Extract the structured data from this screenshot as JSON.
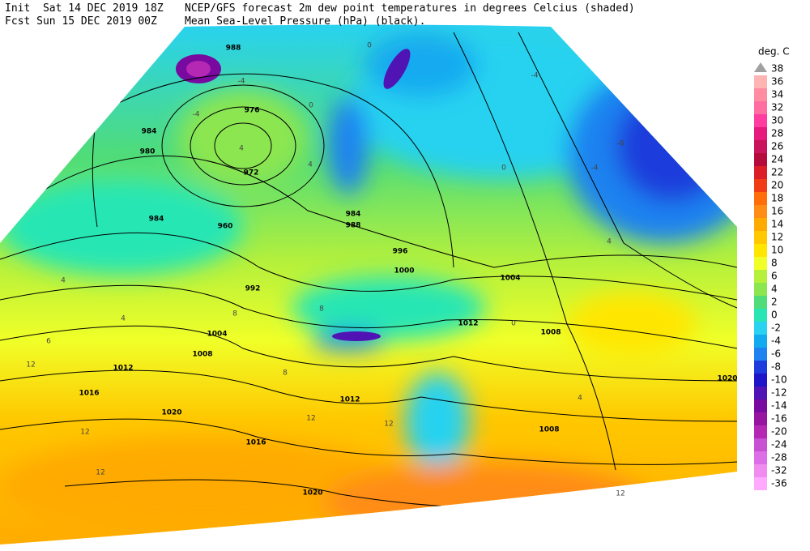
{
  "header": {
    "init": "Init  Sat 14 DEC 2019 18Z",
    "fcst": "Fcst Sun 15 DEC 2019 00Z",
    "title_1": "NCEP/GFS forecast 2m dew point temperatures in degrees Celcius (shaded)",
    "title_2": "Mean Sea-Level Pressure (hPa) (black)."
  },
  "legend": {
    "title": "deg. C",
    "levels": [
      38,
      36,
      34,
      32,
      30,
      28,
      26,
      24,
      22,
      20,
      18,
      16,
      14,
      12,
      10,
      8,
      6,
      4,
      2,
      0,
      -2,
      -4,
      -6,
      -8,
      -10,
      -12,
      -14,
      -16,
      -20,
      -24,
      -28,
      -32,
      -36
    ],
    "colors": [
      "#a0a0a0",
      "#ffb4b4",
      "#ff8ca0",
      "#ff6ea0",
      "#ff3ca0",
      "#e6197d",
      "#c8145a",
      "#b40a3c",
      "#dc1e28",
      "#f03c14",
      "#ff6e0a",
      "#ff8c14",
      "#ffaa00",
      "#ffc800",
      "#ffe600",
      "#f0ff28",
      "#b4f03c",
      "#8ce650",
      "#50dc78",
      "#28e6b4",
      "#28d2f0",
      "#14aaf0",
      "#1e82f0",
      "#1e3cdc",
      "#1e14c8",
      "#5014b4",
      "#780aa0",
      "#9614a0",
      "#b428b4",
      "#c850d2",
      "#dc6ee6",
      "#f08cf0",
      "#ffaaff"
    ]
  },
  "isobar_labels": [
    988,
    976,
    984,
    980,
    972,
    984,
    960,
    992,
    1004,
    1008,
    1012,
    1016,
    1020,
    1016,
    1020,
    1012,
    996,
    1000,
    1004,
    1012,
    1008,
    1020,
    1008,
    984,
    988
  ],
  "dewpoint_labels": [
    -4,
    0,
    4,
    -4,
    0,
    4,
    4,
    -4,
    -8,
    -4,
    0,
    4,
    8,
    12,
    12,
    12,
    4,
    8,
    0,
    4,
    12,
    12,
    4,
    12,
    8,
    6
  ]
}
